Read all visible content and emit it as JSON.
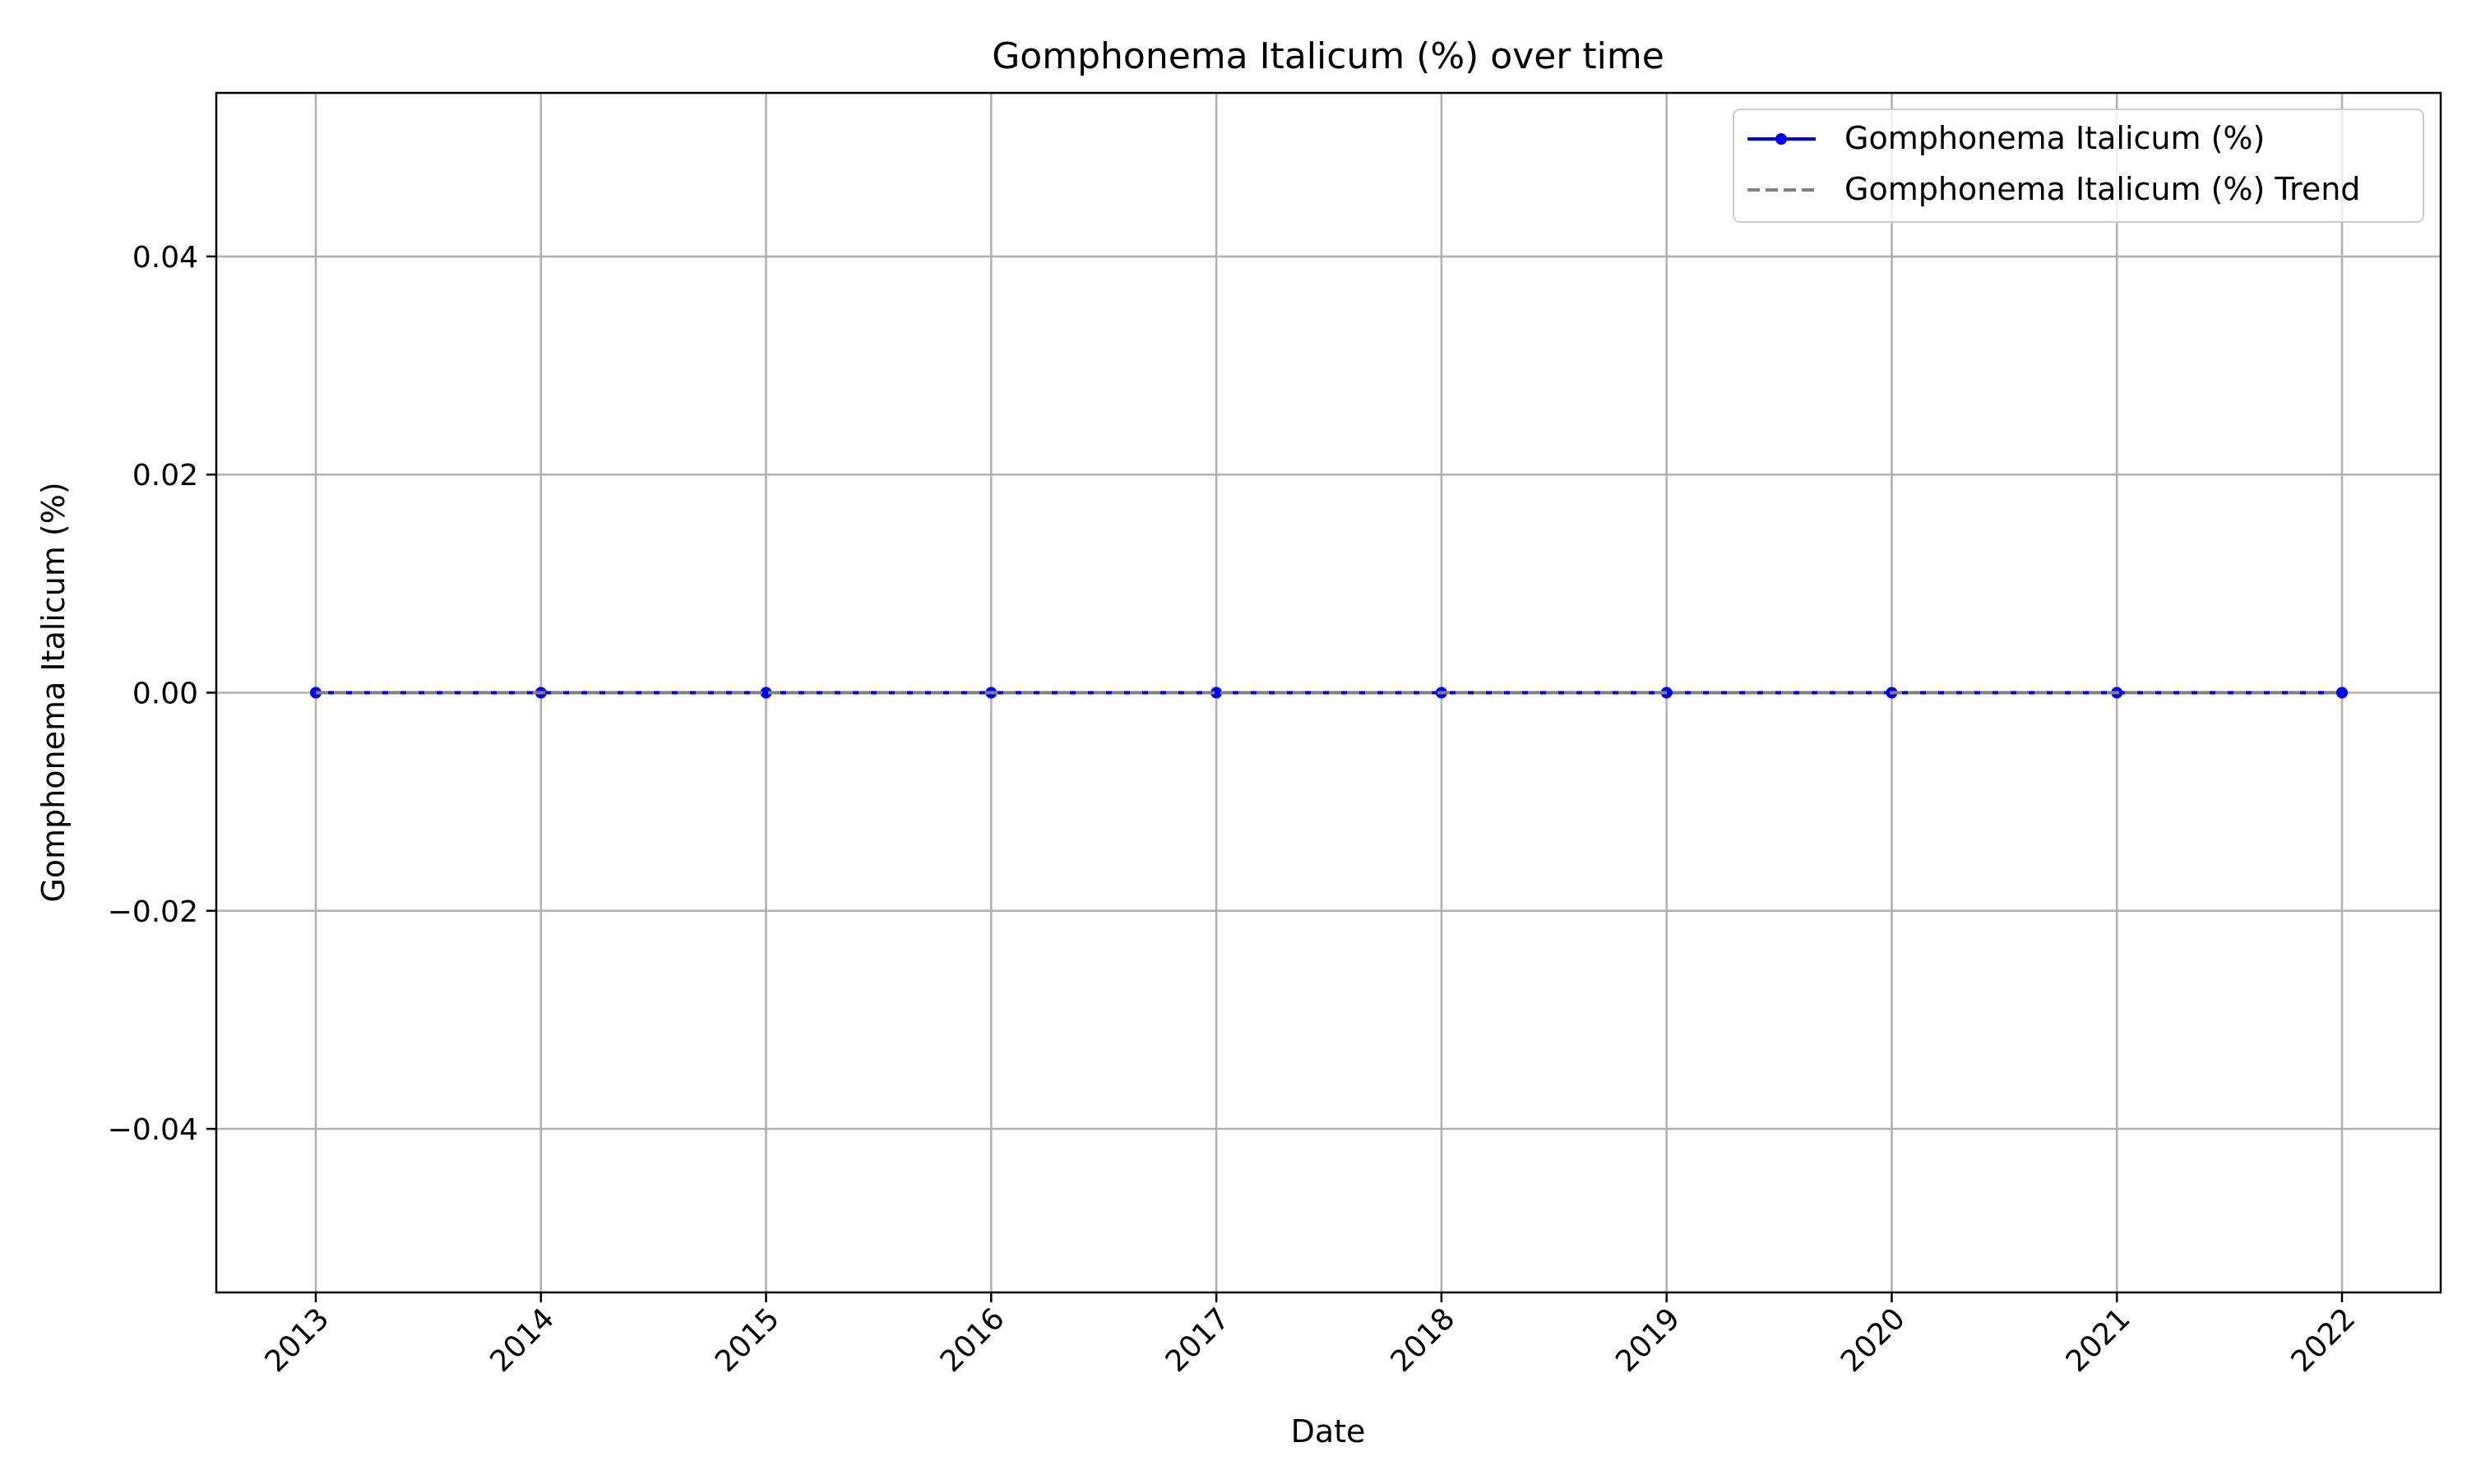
{
  "chart_data": {
    "type": "line",
    "title": "Gomphonema Italicum (%) over time",
    "xlabel": "Date",
    "ylabel": "Gomphonema Italicum (%)",
    "x": [
      "2013",
      "2014",
      "2015",
      "2016",
      "2017",
      "2018",
      "2019",
      "2020",
      "2021",
      "2022"
    ],
    "y_ticks": [
      0.04,
      0.02,
      0.0,
      -0.02,
      -0.04
    ],
    "y_tick_labels": [
      "0.04",
      "0.02",
      "0.00",
      "−0.02",
      "−0.04"
    ],
    "ylim": [
      -0.055,
      0.055
    ],
    "grid": true,
    "legend_position": "top-right",
    "series": [
      {
        "name": "Gomphonema Italicum (%)",
        "style": "solid line with circle markers",
        "color": "#0000ff",
        "values": [
          0,
          0,
          0,
          0,
          0,
          0,
          0,
          0,
          0,
          0
        ]
      },
      {
        "name": "Gomphonema Italicum (%) Trend",
        "style": "dashed",
        "color": "#808080",
        "values": [
          0,
          0,
          0,
          0,
          0,
          0,
          0,
          0,
          0,
          0
        ]
      }
    ]
  }
}
